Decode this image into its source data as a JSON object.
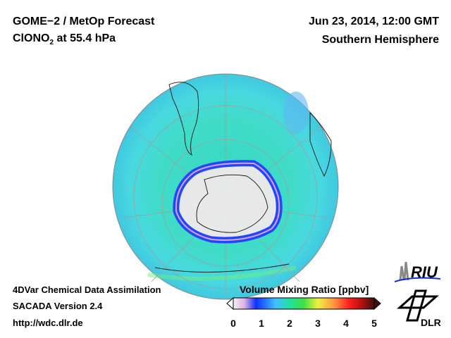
{
  "header": {
    "title_line1": "GOME−2 / MetOp Forecast",
    "species": "ClONO",
    "species_sub": "2",
    "level": " at 55.4 hPa",
    "date": "Jun 23, 2014, 12:00 GMT",
    "hemisphere": "Southern Hemisphere"
  },
  "footer": {
    "line1": "4DVar Chemical Data Assimilation",
    "line2": "SACADA Version 2.4",
    "line3": "http://wdc.dlr.de"
  },
  "colorbar": {
    "title": "Volume Mixing Ratio [ppbv]",
    "ticks": [
      "0",
      "1",
      "2",
      "3",
      "4",
      "5"
    ],
    "range": [
      0,
      5
    ],
    "colors": [
      "#f4f0f4",
      "#e0b0e0",
      "#1030ff",
      "#40c0ff",
      "#20e0a0",
      "#40e040",
      "#f0f040",
      "#ff9040",
      "#ff2020",
      "#e01010",
      "#401010"
    ]
  },
  "logos": {
    "riu": "RIU",
    "dlr": "DLR"
  },
  "map": {
    "projection": "orthographic",
    "hemisphere": "south",
    "ocean_color": "#40d8d0",
    "ring_color": "#2040ff",
    "interior_color": "#f0eaea"
  }
}
